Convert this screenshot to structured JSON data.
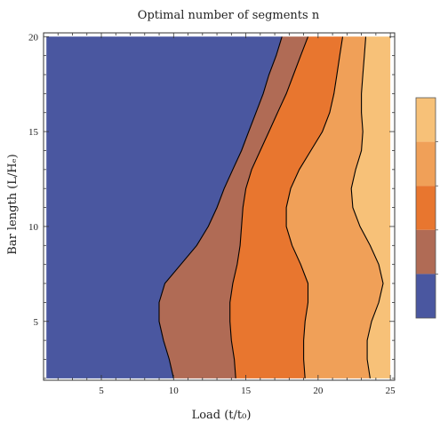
{
  "chart_data": {
    "type": "contour",
    "title": "Optimal number of segments n",
    "xlabel": "Load (t/t₀)",
    "ylabel": "Bar length (L/Hₑ)",
    "xlim": [
      1,
      25.3
    ],
    "ylim": [
      1.9,
      20.2
    ],
    "xticks": [
      5,
      10,
      15,
      20,
      25
    ],
    "yticks": [
      5,
      10,
      15,
      20
    ],
    "grid": false,
    "legend": "right (color bar, labels not legible)",
    "levels": [
      {
        "color": "#4a57a0"
      },
      {
        "color": "#b06b55"
      },
      {
        "color": "#e8762f"
      },
      {
        "color": "#f0a058"
      },
      {
        "color": "#f7c178"
      }
    ],
    "boundaries": [
      {
        "points": [
          [
            10.0,
            2.0
          ],
          [
            9.7,
            3.0
          ],
          [
            9.3,
            4.0
          ],
          [
            9.0,
            5.0
          ],
          [
            9.0,
            6.0
          ],
          [
            9.4,
            7.0
          ],
          [
            10.5,
            8.0
          ],
          [
            11.6,
            9.0
          ],
          [
            12.4,
            10.0
          ],
          [
            13.0,
            11.0
          ],
          [
            13.5,
            12.0
          ],
          [
            14.1,
            13.0
          ],
          [
            14.7,
            14.0
          ],
          [
            15.2,
            15.0
          ],
          [
            15.7,
            16.0
          ],
          [
            16.2,
            17.0
          ],
          [
            16.6,
            18.0
          ],
          [
            17.1,
            19.0
          ],
          [
            17.5,
            20.0
          ]
        ]
      },
      {
        "points": [
          [
            14.3,
            2.0
          ],
          [
            14.2,
            3.0
          ],
          [
            14.0,
            4.0
          ],
          [
            13.9,
            5.0
          ],
          [
            13.9,
            6.0
          ],
          [
            14.1,
            7.0
          ],
          [
            14.4,
            8.0
          ],
          [
            14.6,
            9.0
          ],
          [
            14.7,
            10.0
          ],
          [
            14.8,
            11.0
          ],
          [
            15.0,
            12.0
          ],
          [
            15.4,
            13.0
          ],
          [
            16.0,
            14.0
          ],
          [
            16.6,
            15.0
          ],
          [
            17.2,
            16.0
          ],
          [
            17.8,
            17.0
          ],
          [
            18.3,
            18.0
          ],
          [
            18.8,
            19.0
          ],
          [
            19.3,
            20.0
          ]
        ]
      },
      {
        "points": [
          [
            19.1,
            2.0
          ],
          [
            19.0,
            3.0
          ],
          [
            19.0,
            4.0
          ],
          [
            19.1,
            5.0
          ],
          [
            19.3,
            6.0
          ],
          [
            19.3,
            7.0
          ],
          [
            18.8,
            8.0
          ],
          [
            18.2,
            9.0
          ],
          [
            17.8,
            10.0
          ],
          [
            17.8,
            11.0
          ],
          [
            18.1,
            12.0
          ],
          [
            18.7,
            13.0
          ],
          [
            19.5,
            14.0
          ],
          [
            20.3,
            15.0
          ],
          [
            20.8,
            16.0
          ],
          [
            21.1,
            17.0
          ],
          [
            21.3,
            18.0
          ],
          [
            21.5,
            19.0
          ],
          [
            21.7,
            20.0
          ]
        ]
      },
      {
        "points": [
          [
            23.6,
            2.0
          ],
          [
            23.4,
            3.0
          ],
          [
            23.4,
            4.0
          ],
          [
            23.7,
            5.0
          ],
          [
            24.2,
            6.0
          ],
          [
            24.5,
            7.0
          ],
          [
            24.2,
            8.0
          ],
          [
            23.6,
            9.0
          ],
          [
            22.9,
            10.0
          ],
          [
            22.4,
            11.0
          ],
          [
            22.3,
            12.0
          ],
          [
            22.6,
            13.0
          ],
          [
            23.0,
            14.0
          ],
          [
            23.1,
            15.0
          ],
          [
            23.0,
            16.0
          ],
          [
            23.0,
            17.0
          ],
          [
            23.1,
            18.0
          ],
          [
            23.2,
            19.0
          ],
          [
            23.3,
            20.0
          ]
        ]
      }
    ]
  }
}
